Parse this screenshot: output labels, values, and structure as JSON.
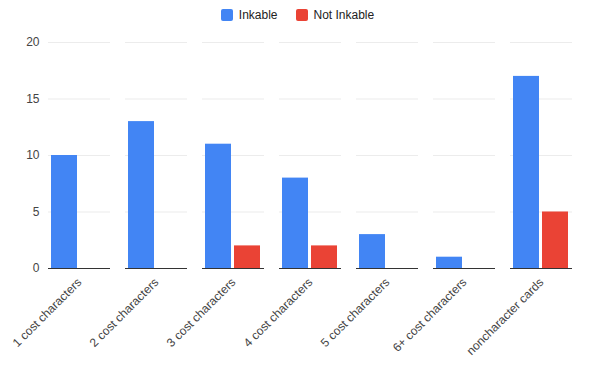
{
  "chart_data": {
    "type": "bar",
    "categories": [
      "1 cost characters",
      "2 cost characters",
      "3 cost characters",
      "4 cost characters",
      "5 cost characters",
      "6+ cost characters",
      "noncharacter cards"
    ],
    "series": [
      {
        "name": "Inkable",
        "color": "#4285f4",
        "values": [
          10,
          13,
          11,
          8,
          3,
          1,
          17
        ]
      },
      {
        "name": "Not Inkable",
        "color": "#ea4335",
        "values": [
          0,
          0,
          2,
          2,
          0,
          0,
          5
        ]
      }
    ],
    "ylim": [
      0,
      20
    ],
    "yticks": [
      0,
      5,
      10,
      15,
      20
    ],
    "grid": true,
    "legend": "top"
  }
}
